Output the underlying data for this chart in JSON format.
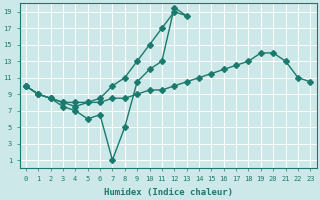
{
  "xlabel": "Humidex (Indice chaleur)",
  "bg_color": "#cce8e8",
  "grid_color": "#ffffff",
  "line_color": "#1a7a6e",
  "xlim": [
    -0.5,
    23.5
  ],
  "ylim": [
    0,
    20
  ],
  "xticks": [
    0,
    1,
    2,
    3,
    4,
    5,
    6,
    7,
    8,
    9,
    10,
    11,
    12,
    13,
    14,
    15,
    16,
    17,
    18,
    19,
    20,
    21,
    22,
    23
  ],
  "yticks": [
    1,
    3,
    5,
    7,
    9,
    11,
    13,
    15,
    17,
    19
  ],
  "series1_x": [
    0,
    1,
    2,
    3,
    4,
    5,
    6,
    7,
    8,
    9,
    10,
    11,
    12
  ],
  "series1_y": [
    10,
    9,
    8.5,
    8,
    7.5,
    8,
    8.5,
    10,
    11,
    13,
    15,
    17,
    19
  ],
  "series2_x": [
    0,
    1,
    2,
    3,
    4,
    5,
    6,
    7,
    8,
    9,
    10,
    11,
    12,
    13
  ],
  "series2_y": [
    10,
    9,
    8.5,
    7.5,
    7,
    6,
    6.5,
    1,
    5,
    10.5,
    12,
    13,
    19.5,
    18.5
  ],
  "series3_x": [
    0,
    1,
    2,
    3,
    4,
    5,
    6,
    7,
    8,
    9,
    10,
    11,
    12,
    13,
    14,
    15,
    16,
    17,
    18,
    19,
    20,
    21,
    22,
    23
  ],
  "series3_y": [
    10,
    9,
    8.5,
    8,
    8,
    8,
    8,
    8.5,
    8.5,
    9,
    9.5,
    9.5,
    10,
    10.5,
    11,
    11.5,
    12,
    12.5,
    13,
    14,
    14,
    13,
    11,
    10.5
  ],
  "markersize": 3,
  "linewidth": 1.0
}
